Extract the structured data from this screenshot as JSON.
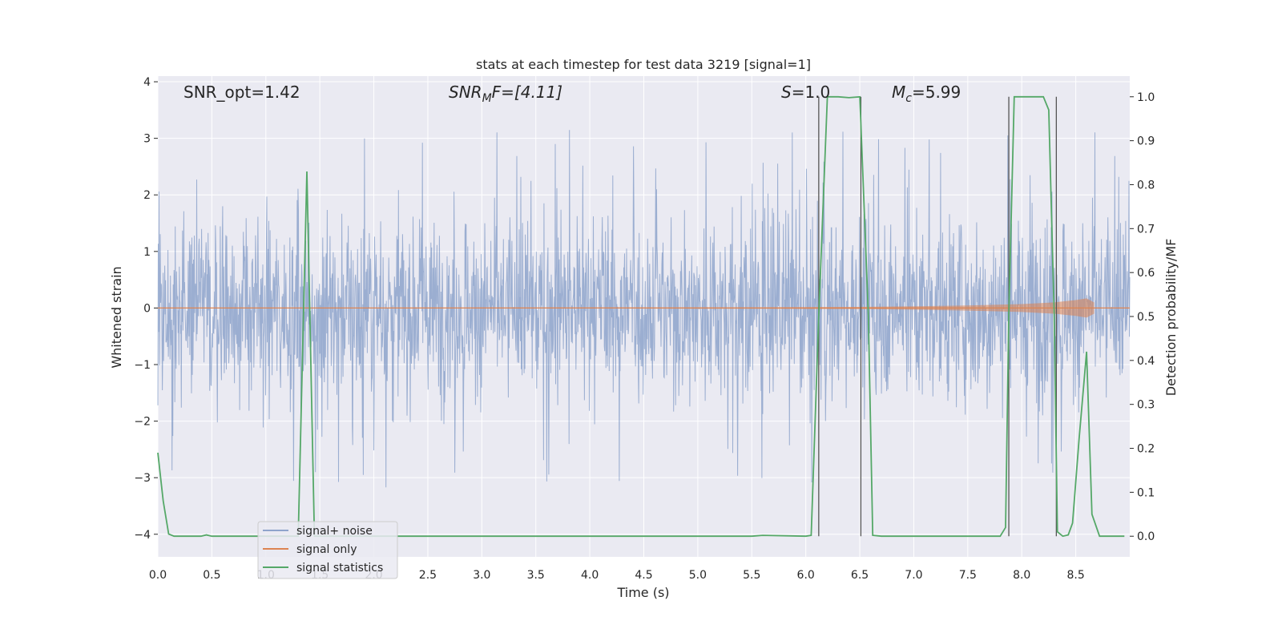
{
  "chart_data": {
    "type": "line",
    "title": "stats at each timestep for test data 3219 [signal=1]",
    "xlabel": "Time (s)",
    "ylabel": "Whitened strain",
    "ylabel_right": "Detection probability/MF",
    "xlim": [
      0.0,
      9.0
    ],
    "ylim_left": [
      -4.4,
      4.1
    ],
    "ylim_right": [
      -0.047,
      1.047
    ],
    "grid": true,
    "legend_position": "lower-left",
    "x_ticks": [
      "0.0",
      "0.5",
      "1.0",
      "1.5",
      "2.0",
      "2.5",
      "3.0",
      "3.5",
      "4.0",
      "4.5",
      "5.0",
      "5.5",
      "6.0",
      "6.5",
      "7.0",
      "7.5",
      "8.0",
      "8.5"
    ],
    "y_ticks_left": [
      "−4",
      "−3",
      "−2",
      "−1",
      "0",
      "1",
      "2",
      "3",
      "4"
    ],
    "y_ticks_right": [
      "0.0",
      "0.1",
      "0.2",
      "0.3",
      "0.4",
      "0.5",
      "0.6",
      "0.7",
      "0.8",
      "0.9",
      "1.0"
    ],
    "annotations": {
      "snr_opt": "SNR_opt=1.42",
      "snr_mf_var": "SNR",
      "snr_mf_sub": "M",
      "snr_mf_rest": "F=[4.11]",
      "s_var": "S",
      "s_rest": "=1.0",
      "mc_var": "M",
      "mc_sub": "c",
      "mc_rest": "=5.99"
    },
    "vertical_lines_x": [
      6.12,
      6.51,
      7.88,
      8.32
    ],
    "series": [
      {
        "name": "signal+ noise",
        "color": "#4c72b0",
        "envelope": {
          "bulk_amplitude": 1.4,
          "peak_amplitude_typical": 2.6,
          "max_value": 3.7,
          "min_value": -4.0
        }
      },
      {
        "name": "signal only",
        "color": "#dd8452",
        "envelope_x": [
          0.0,
          2.0,
          4.0,
          5.5,
          6.5,
          7.0,
          7.5,
          8.0,
          8.3,
          8.5,
          8.6,
          8.67
        ],
        "envelope_amp": [
          0.005,
          0.006,
          0.008,
          0.012,
          0.02,
          0.03,
          0.045,
          0.07,
          0.1,
          0.14,
          0.17,
          0.1
        ]
      },
      {
        "name": "signal statistics",
        "color": "#55a868",
        "x": [
          0.0,
          0.05,
          0.1,
          0.15,
          0.2,
          0.3,
          0.4,
          0.45,
          0.5,
          1.2,
          1.3,
          1.38,
          1.45,
          1.5,
          2.0,
          3.0,
          4.0,
          5.0,
          5.5,
          5.6,
          6.0,
          6.05,
          6.12,
          6.2,
          6.27,
          6.3,
          6.4,
          6.5,
          6.58,
          6.62,
          6.7,
          6.8,
          7.0,
          7.5,
          7.8,
          7.85,
          7.88,
          7.93,
          8.0,
          8.1,
          8.2,
          8.25,
          8.3,
          8.33,
          8.38,
          8.43,
          8.47,
          8.53,
          8.6,
          8.65,
          8.72,
          8.8,
          8.9,
          8.95
        ],
        "y": [
          0.19,
          0.08,
          0.005,
          0.0,
          0.0,
          0.0,
          0.0,
          0.003,
          0.0,
          0.0,
          0.0,
          0.83,
          0.0,
          0.0,
          0.0,
          0.0,
          0.0,
          0.0,
          0.0,
          0.002,
          0.0,
          0.002,
          0.5,
          1.0,
          1.0,
          1.0,
          0.998,
          1.0,
          0.5,
          0.002,
          0.0,
          0.0,
          0.0,
          0.0,
          0.0,
          0.02,
          0.5,
          1.0,
          1.0,
          1.0,
          1.0,
          0.97,
          0.5,
          0.01,
          0.0,
          0.003,
          0.03,
          0.22,
          0.42,
          0.05,
          0.0,
          0.0,
          0.0,
          0.0
        ]
      }
    ]
  }
}
